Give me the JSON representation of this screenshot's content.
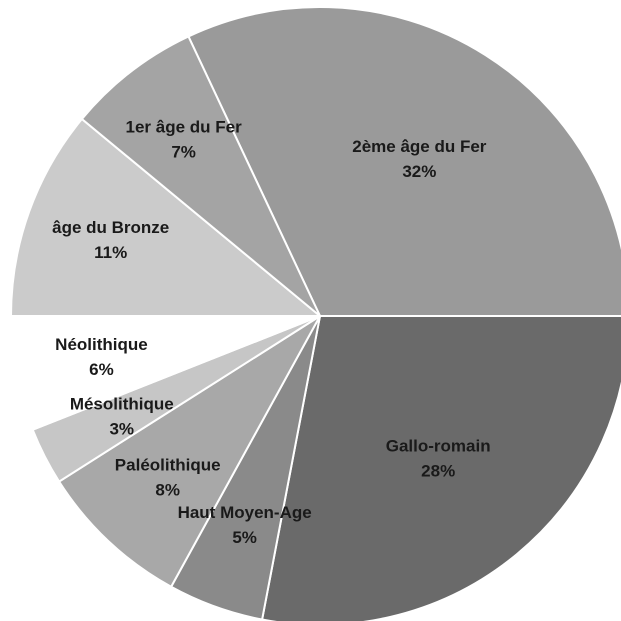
{
  "chart_data": {
    "type": "pie",
    "categories": [
      "2ème âge du Fer",
      "Gallo-romain",
      "Haut Moyen-Age",
      "Paléolithique",
      "Mésolithique",
      "Néolithique",
      "âge du Bronze",
      "1er âge du Fer"
    ],
    "values": [
      32,
      28,
      5,
      8,
      3,
      6,
      11,
      7
    ],
    "value_labels": [
      "32%",
      "28%",
      "5%",
      "8%",
      "3%",
      "6%",
      "11%",
      "7%"
    ],
    "colors": [
      "#9a9a9a",
      "#6a6a6a",
      "#8a8a8a",
      "#a8a8a8",
      "#c6c6c6",
      "#ffffff",
      "#cbcbcb",
      "#a4a4a4"
    ]
  }
}
